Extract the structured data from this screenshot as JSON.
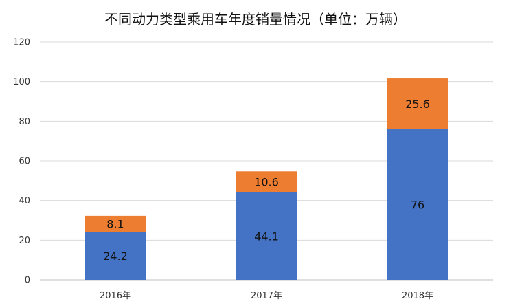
{
  "chart_data": {
    "type": "bar",
    "stacked": true,
    "title": "不同动力类型乘用车年度销量情况（单位：万辆）",
    "categories": [
      "2016年",
      "2017年",
      "2018年"
    ],
    "series": [
      {
        "values": [
          24.2,
          44.1,
          76
        ],
        "labels": [
          "24.2",
          "44.1",
          "76"
        ],
        "color": "#4472C4"
      },
      {
        "values": [
          8.1,
          10.6,
          25.6
        ],
        "labels": [
          "8.1",
          "10.6",
          "25.6"
        ],
        "color": "#ED7D31"
      }
    ],
    "ylim": [
      0,
      120
    ],
    "yticks": [
      "0",
      "20",
      "40",
      "60",
      "80",
      "100",
      "120"
    ],
    "grid": true,
    "xlabel": "",
    "ylabel": ""
  }
}
